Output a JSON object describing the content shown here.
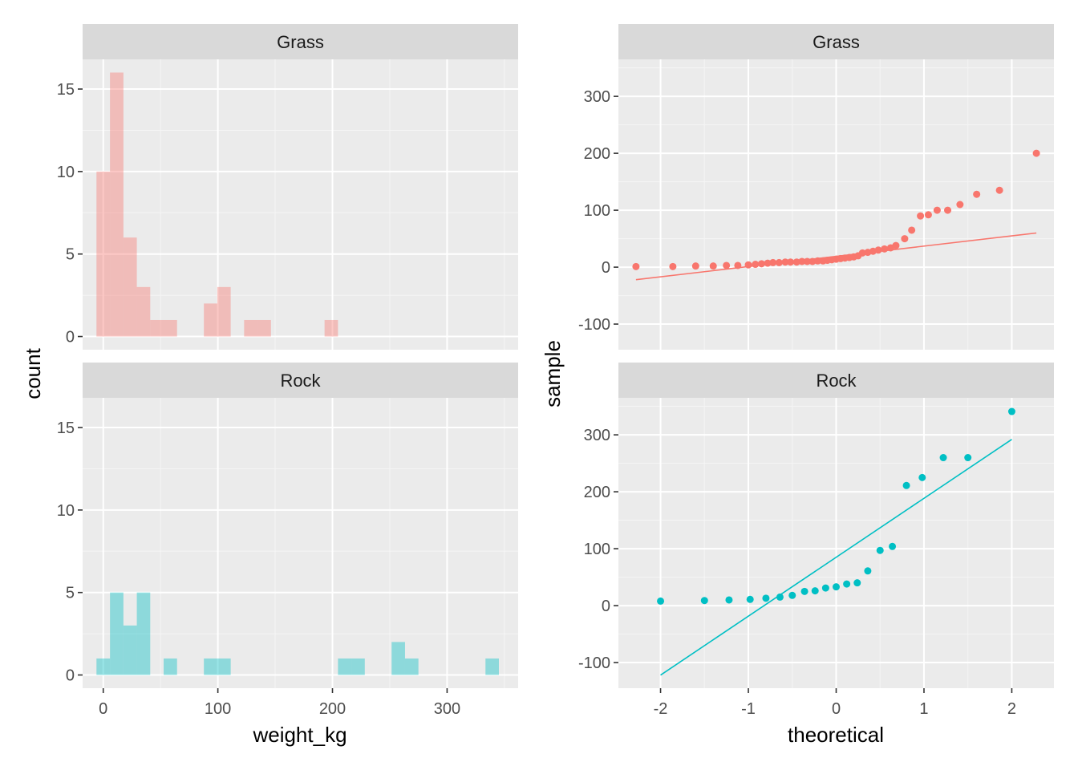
{
  "colors": {
    "panel_bg": "#EBEBEB",
    "grid_major": "#FFFFFF",
    "grid_minor": "#F5F5F5",
    "strip_bg": "#D9D9D9",
    "tick": "#333333",
    "grass": "#F8766D",
    "rock": "#00BFC4"
  },
  "chart_data": [
    {
      "type": "bar",
      "subtype": "histogram",
      "facet_by": "habitat",
      "xlabel": "weight_kg",
      "ylabel": "count",
      "xlim": [
        -18,
        362
      ],
      "ylim": [
        -0.8,
        16.8
      ],
      "x_ticks": [
        0,
        100,
        200,
        300
      ],
      "x_tick_labels": [
        "0",
        "100",
        "200",
        "300"
      ],
      "y_ticks": [
        0,
        5,
        10,
        15
      ],
      "y_tick_labels": [
        "0",
        "5",
        "10",
        "15"
      ],
      "bin_width": 11.7,
      "facets": [
        {
          "label": "Grass",
          "color": "#F8766D",
          "bins": [
            {
              "x0": -5.9,
              "x1": 5.9,
              "count": 10
            },
            {
              "x0": 5.9,
              "x1": 17.6,
              "count": 16
            },
            {
              "x0": 17.6,
              "x1": 29.3,
              "count": 6
            },
            {
              "x0": 29.3,
              "x1": 41.0,
              "count": 3
            },
            {
              "x0": 41.0,
              "x1": 52.7,
              "count": 1
            },
            {
              "x0": 52.7,
              "x1": 64.4,
              "count": 1
            },
            {
              "x0": 87.8,
              "x1": 99.5,
              "count": 2
            },
            {
              "x0": 99.5,
              "x1": 111.2,
              "count": 3
            },
            {
              "x0": 122.9,
              "x1": 134.6,
              "count": 1
            },
            {
              "x0": 134.6,
              "x1": 146.3,
              "count": 1
            },
            {
              "x0": 193.1,
              "x1": 204.8,
              "count": 1
            }
          ]
        },
        {
          "label": "Rock",
          "color": "#00BFC4",
          "bins": [
            {
              "x0": -5.9,
              "x1": 5.9,
              "count": 1
            },
            {
              "x0": 5.9,
              "x1": 17.6,
              "count": 5
            },
            {
              "x0": 17.6,
              "x1": 29.3,
              "count": 3
            },
            {
              "x0": 29.3,
              "x1": 41.0,
              "count": 5
            },
            {
              "x0": 52.7,
              "x1": 64.4,
              "count": 1
            },
            {
              "x0": 87.8,
              "x1": 99.5,
              "count": 1
            },
            {
              "x0": 99.5,
              "x1": 111.2,
              "count": 1
            },
            {
              "x0": 204.8,
              "x1": 216.5,
              "count": 1
            },
            {
              "x0": 216.5,
              "x1": 228.2,
              "count": 1
            },
            {
              "x0": 251.6,
              "x1": 263.3,
              "count": 2
            },
            {
              "x0": 263.3,
              "x1": 275.0,
              "count": 1
            },
            {
              "x0": 333.5,
              "x1": 345.2,
              "count": 1
            }
          ]
        }
      ]
    },
    {
      "type": "scatter",
      "subtype": "qq-plot",
      "facet_by": "habitat",
      "xlabel": "theoretical",
      "ylabel": "sample",
      "xlim": [
        -2.48,
        2.48
      ],
      "ylim": [
        -145,
        365
      ],
      "x_ticks": [
        -2,
        -1,
        0,
        1,
        2
      ],
      "x_tick_labels": [
        "-2",
        "-1",
        "0",
        "1",
        "2"
      ],
      "y_ticks": [
        -100,
        0,
        100,
        200,
        300
      ],
      "y_tick_labels": [
        "-100",
        "0",
        "100",
        "200",
        "300"
      ],
      "facets": [
        {
          "label": "Grass",
          "color": "#F8766D",
          "line": {
            "x": [
              -2.28,
              2.28
            ],
            "y": [
              -22,
              60
            ]
          },
          "points": [
            [
              -2.28,
              1
            ],
            [
              -1.86,
              1
            ],
            [
              -1.6,
              2
            ],
            [
              -1.4,
              2
            ],
            [
              -1.25,
              3
            ],
            [
              -1.12,
              3
            ],
            [
              -1.0,
              4
            ],
            [
              -0.92,
              5
            ],
            [
              -0.85,
              6
            ],
            [
              -0.78,
              7
            ],
            [
              -0.72,
              8
            ],
            [
              -0.65,
              8
            ],
            [
              -0.58,
              9
            ],
            [
              -0.52,
              9
            ],
            [
              -0.45,
              9
            ],
            [
              -0.39,
              10
            ],
            [
              -0.33,
              10
            ],
            [
              -0.27,
              10
            ],
            [
              -0.21,
              11
            ],
            [
              -0.15,
              11
            ],
            [
              -0.1,
              12
            ],
            [
              -0.05,
              13
            ],
            [
              0.0,
              14
            ],
            [
              0.05,
              15
            ],
            [
              0.1,
              16
            ],
            [
              0.15,
              17
            ],
            [
              0.2,
              18
            ],
            [
              0.25,
              20
            ],
            [
              0.3,
              25
            ],
            [
              0.36,
              26
            ],
            [
              0.42,
              28
            ],
            [
              0.48,
              30
            ],
            [
              0.55,
              32
            ],
            [
              0.62,
              34
            ],
            [
              0.68,
              38
            ],
            [
              0.78,
              50
            ],
            [
              0.86,
              65
            ],
            [
              0.96,
              90
            ],
            [
              1.05,
              92
            ],
            [
              1.15,
              100
            ],
            [
              1.27,
              100
            ],
            [
              1.41,
              110
            ],
            [
              1.6,
              128
            ],
            [
              1.86,
              135
            ],
            [
              2.28,
              200
            ]
          ]
        },
        {
          "label": "Rock",
          "color": "#00BFC4",
          "line": {
            "x": [
              -2.0,
              2.0
            ],
            "y": [
              -122,
              292
            ]
          },
          "points": [
            [
              -2.0,
              8
            ],
            [
              -1.5,
              9
            ],
            [
              -1.22,
              10
            ],
            [
              -0.98,
              11
            ],
            [
              -0.8,
              13
            ],
            [
              -0.64,
              15
            ],
            [
              -0.5,
              18
            ],
            [
              -0.36,
              25
            ],
            [
              -0.24,
              26
            ],
            [
              -0.12,
              31
            ],
            [
              0.0,
              33
            ],
            [
              0.12,
              38
            ],
            [
              0.24,
              40
            ],
            [
              0.36,
              61
            ],
            [
              0.5,
              97
            ],
            [
              0.64,
              104
            ],
            [
              0.8,
              211
            ],
            [
              0.98,
              225
            ],
            [
              1.22,
              260
            ],
            [
              1.5,
              260
            ],
            [
              2.0,
              341
            ]
          ]
        }
      ]
    }
  ]
}
